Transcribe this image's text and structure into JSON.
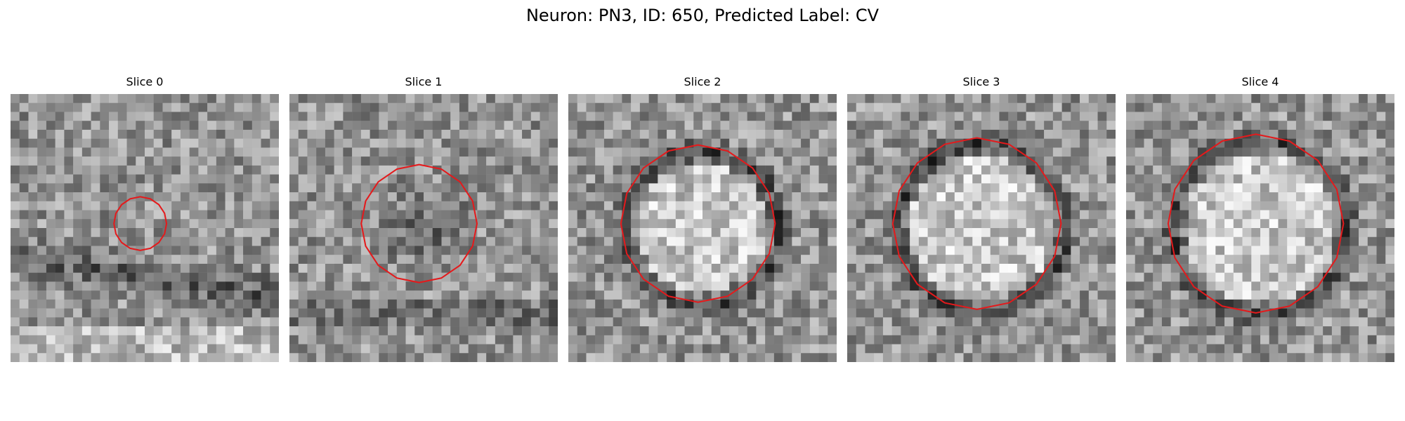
{
  "figure": {
    "title": "Neuron: PN3, ID: 650, Predicted Label: CV"
  },
  "panels": [
    {
      "label": "Slice 0",
      "contour_scale": 0.3
    },
    {
      "label": "Slice 1",
      "contour_scale": 0.66
    },
    {
      "label": "Slice 2",
      "contour_scale": 0.88
    },
    {
      "label": "Slice 3",
      "contour_scale": 0.96
    },
    {
      "label": "Slice 4",
      "contour_scale": 1.0
    }
  ],
  "colors": {
    "contour": "#e41a1c",
    "colormap": "gray"
  }
}
